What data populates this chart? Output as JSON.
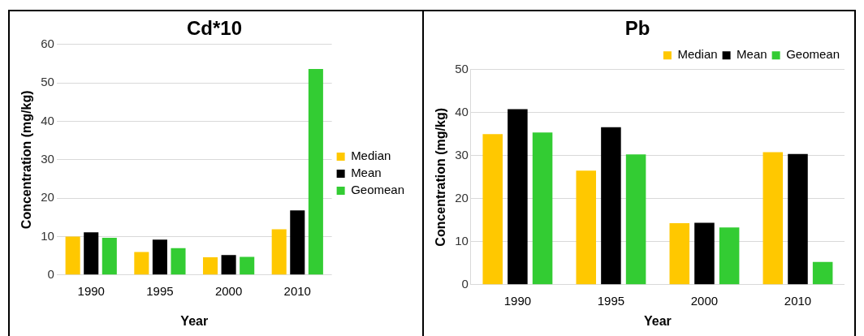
{
  "chart_data": [
    {
      "type": "bar",
      "title": "Cd*10",
      "xlabel": "Year",
      "ylabel": "Concentration (mg/kg)",
      "categories": [
        "1990",
        "1995",
        "2000",
        "2010"
      ],
      "series": [
        {
          "name": "Median",
          "color": "#ffc800",
          "values": [
            10.0,
            6.0,
            4.6,
            11.9
          ]
        },
        {
          "name": "Mean",
          "color": "#000000",
          "values": [
            11.1,
            9.2,
            5.2,
            16.8
          ]
        },
        {
          "name": "Geomean",
          "color": "#33cc33",
          "values": [
            9.7,
            7.0,
            4.7,
            53.6
          ]
        }
      ],
      "ylim": [
        0,
        60
      ],
      "yticks": [
        0,
        10,
        20,
        30,
        40,
        50,
        60
      ],
      "grid": "y",
      "legend": "right"
    },
    {
      "type": "bar",
      "title": "Pb",
      "xlabel": "Year",
      "ylabel": "Concentration (mg/kg)",
      "categories": [
        "1990",
        "1995",
        "2000",
        "2010"
      ],
      "series": [
        {
          "name": "Median",
          "color": "#ffc800",
          "values": [
            35.0,
            26.5,
            14.3,
            30.8
          ]
        },
        {
          "name": "Mean",
          "color": "#000000",
          "values": [
            40.8,
            36.6,
            14.4,
            30.4
          ]
        },
        {
          "name": "Geomean",
          "color": "#33cc33",
          "values": [
            35.4,
            30.3,
            13.3,
            5.3
          ]
        }
      ],
      "ylim": [
        0,
        50
      ],
      "yticks": [
        0,
        10,
        20,
        30,
        40,
        50
      ],
      "grid": "y",
      "legend": "top right"
    }
  ]
}
